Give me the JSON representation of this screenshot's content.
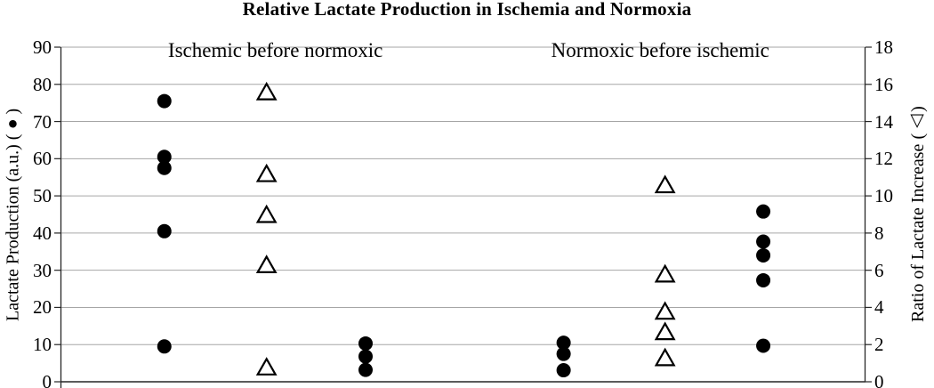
{
  "page": {
    "background": "#ffffff"
  },
  "chart_data": {
    "type": "scatter",
    "title": "Relative Lactate Production in Ischemia and Normoxia",
    "annotations": [
      {
        "text": "Ischemic before normoxic",
        "x_frac": 0.267
      },
      {
        "text": "Normoxic before ischemic",
        "x_frac": 0.745
      }
    ],
    "axes": {
      "left": {
        "label": "Lactate Production (a.u.) (●)",
        "min": 0,
        "max": 90,
        "step": 10
      },
      "right": {
        "label": "Ratio of Lactate Increase (△)",
        "min": 0,
        "max": 18,
        "step": 2
      }
    },
    "grid": {
      "horizontal": true,
      "color": "#a6a6a6",
      "axis_color": "#262626"
    },
    "marker_colors": {
      "fill": "#000000",
      "triangle_fill": "#ffffff",
      "stroke": "#000000"
    },
    "series": [
      {
        "name": "Lactate Production (filled circles, left axis)",
        "marker": "filled-circle",
        "axis": "left",
        "groups": [
          {
            "x_frac": 0.129,
            "values": [
              75.5,
              60.5,
              57.5,
              40.5,
              9.5
            ]
          },
          {
            "x_frac": 0.379,
            "values": [
              10.3,
              6.8,
              3.2
            ]
          },
          {
            "x_frac": 0.625,
            "values": [
              10.5,
              7.5,
              3.1
            ]
          },
          {
            "x_frac": 0.873,
            "values": [
              45.8,
              37.7,
              34.0,
              27.3,
              9.7
            ]
          }
        ]
      },
      {
        "name": "Ratio of Lactate Increase (open triangles, right axis)",
        "marker": "open-triangle",
        "axis": "right",
        "groups": [
          {
            "x_frac": 0.256,
            "values": [
              15.6,
              11.2,
              9.0,
              6.3,
              0.8
            ]
          },
          {
            "x_frac": 0.751,
            "values": [
              10.6,
              5.8,
              3.8,
              2.7,
              1.3
            ]
          }
        ]
      }
    ]
  }
}
